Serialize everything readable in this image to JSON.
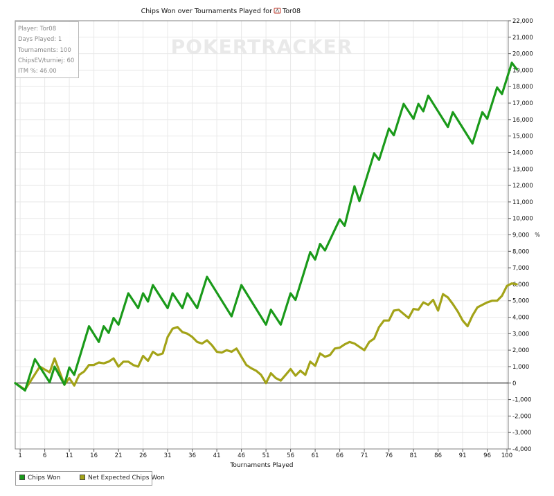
{
  "info": {
    "lines": [
      "Player: Tor08",
      "Days Played: 1",
      "Tournaments: 100",
      "ChipsEV/turniej: 60",
      "ITM %: 46.00"
    ]
  },
  "watermark": "POKERTRACKER",
  "colors": {
    "chips_won": "#1a9a1a",
    "net_expected": "#a3a318",
    "zero_line": "#000000",
    "grid": "#e8e8e8"
  },
  "chart_data": {
    "type": "line",
    "title": "Chips Won over Tournaments Played for",
    "title_player": "Tor08",
    "title_icon": "pokerstars-icon",
    "xlabel": "Tournaments Played",
    "ylabel": "",
    "y2label": "%",
    "xlim": [
      1,
      100
    ],
    "ylim": [
      -4000,
      22000
    ],
    "x_ticks": [
      "1",
      "6",
      "11",
      "16",
      "21",
      "26",
      "31",
      "36",
      "41",
      "46",
      "51",
      "56",
      "61",
      "66",
      "71",
      "76",
      "81",
      "86",
      "91",
      "96",
      "100"
    ],
    "y_ticks": [
      "22,000",
      "21,000",
      "20,000",
      "19,000",
      "18,000",
      "17,000",
      "16,000",
      "15,000",
      "14,000",
      "13,000",
      "12,000",
      "11,000",
      "10,000",
      "9,000",
      "8,000",
      "7,000",
      "6,000",
      "5,000",
      "4,000",
      "3,000",
      "2,000",
      "1,000",
      "0",
      "-1,000",
      "-2,000",
      "-3,000",
      "-4,000"
    ],
    "grid": true,
    "legend_position": "bottom-left",
    "series": [
      {
        "name": "Chips Won",
        "points": [
          [
            0,
            0
          ],
          [
            2,
            -450
          ],
          [
            4,
            1450
          ],
          [
            7,
            50
          ],
          [
            8,
            1000
          ],
          [
            10,
            -100
          ],
          [
            11,
            950
          ],
          [
            12,
            500
          ],
          [
            15,
            3450
          ],
          [
            17,
            2500
          ],
          [
            18,
            3450
          ],
          [
            19,
            3050
          ],
          [
            20,
            3950
          ],
          [
            21,
            3550
          ],
          [
            23,
            5450
          ],
          [
            25,
            4550
          ],
          [
            26,
            5450
          ],
          [
            27,
            4950
          ],
          [
            28,
            5950
          ],
          [
            31,
            4550
          ],
          [
            32,
            5450
          ],
          [
            34,
            4550
          ],
          [
            35,
            5450
          ],
          [
            37,
            4550
          ],
          [
            39,
            6450
          ],
          [
            44,
            4050
          ],
          [
            46,
            5950
          ],
          [
            51,
            3550
          ],
          [
            52,
            4450
          ],
          [
            54,
            3550
          ],
          [
            56,
            5450
          ],
          [
            57,
            5050
          ],
          [
            60,
            7950
          ],
          [
            61,
            7500
          ],
          [
            62,
            8450
          ],
          [
            63,
            8050
          ],
          [
            66,
            9950
          ],
          [
            67,
            9550
          ],
          [
            69,
            11950
          ],
          [
            70,
            11050
          ],
          [
            73,
            13950
          ],
          [
            74,
            13550
          ],
          [
            76,
            15450
          ],
          [
            77,
            15050
          ],
          [
            79,
            16950
          ],
          [
            81,
            16050
          ],
          [
            82,
            16950
          ],
          [
            83,
            16500
          ],
          [
            84,
            17450
          ],
          [
            88,
            15550
          ],
          [
            89,
            16450
          ],
          [
            93,
            14550
          ],
          [
            95,
            16450
          ],
          [
            96,
            16050
          ],
          [
            98,
            17950
          ],
          [
            99,
            17550
          ],
          [
            101,
            19450
          ],
          [
            102,
            19050
          ]
        ]
      },
      {
        "name": "Net Expected Chips Won",
        "points": [
          [
            0,
            0
          ],
          [
            2,
            -400
          ],
          [
            5,
            1000
          ],
          [
            7,
            650
          ],
          [
            8,
            1500
          ],
          [
            10,
            -100
          ],
          [
            11,
            300
          ],
          [
            12,
            -150
          ],
          [
            13,
            500
          ],
          [
            14,
            700
          ],
          [
            15,
            1100
          ],
          [
            16,
            1100
          ],
          [
            17,
            1250
          ],
          [
            18,
            1200
          ],
          [
            19,
            1300
          ],
          [
            20,
            1500
          ],
          [
            21,
            1000
          ],
          [
            22,
            1300
          ],
          [
            23,
            1300
          ],
          [
            24,
            1100
          ],
          [
            25,
            1000
          ],
          [
            26,
            1650
          ],
          [
            27,
            1350
          ],
          [
            28,
            1900
          ],
          [
            29,
            1700
          ],
          [
            30,
            1800
          ],
          [
            31,
            2800
          ],
          [
            32,
            3300
          ],
          [
            33,
            3400
          ],
          [
            34,
            3100
          ],
          [
            35,
            3000
          ],
          [
            36,
            2800
          ],
          [
            37,
            2500
          ],
          [
            38,
            2400
          ],
          [
            39,
            2600
          ],
          [
            40,
            2300
          ],
          [
            41,
            1900
          ],
          [
            42,
            1850
          ],
          [
            43,
            2000
          ],
          [
            44,
            1900
          ],
          [
            45,
            2100
          ],
          [
            46,
            1600
          ],
          [
            47,
            1100
          ],
          [
            48,
            900
          ],
          [
            49,
            750
          ],
          [
            50,
            500
          ],
          [
            51,
            0
          ],
          [
            52,
            600
          ],
          [
            53,
            300
          ],
          [
            54,
            150
          ],
          [
            55,
            500
          ],
          [
            56,
            850
          ],
          [
            57,
            450
          ],
          [
            58,
            750
          ],
          [
            59,
            500
          ],
          [
            60,
            1300
          ],
          [
            61,
            1050
          ],
          [
            62,
            1800
          ],
          [
            63,
            1600
          ],
          [
            64,
            1700
          ],
          [
            65,
            2100
          ],
          [
            66,
            2150
          ],
          [
            67,
            2350
          ],
          [
            68,
            2500
          ],
          [
            69,
            2400
          ],
          [
            70,
            2200
          ],
          [
            71,
            2000
          ],
          [
            72,
            2500
          ],
          [
            73,
            2700
          ],
          [
            74,
            3400
          ],
          [
            75,
            3800
          ],
          [
            76,
            3800
          ],
          [
            77,
            4400
          ],
          [
            78,
            4450
          ],
          [
            79,
            4200
          ],
          [
            80,
            3950
          ],
          [
            81,
            4500
          ],
          [
            82,
            4450
          ],
          [
            83,
            4900
          ],
          [
            84,
            4750
          ],
          [
            85,
            5050
          ],
          [
            86,
            4400
          ],
          [
            87,
            5400
          ],
          [
            88,
            5200
          ],
          [
            89,
            4800
          ],
          [
            90,
            4350
          ],
          [
            91,
            3800
          ],
          [
            92,
            3450
          ],
          [
            93,
            4100
          ],
          [
            94,
            4600
          ],
          [
            95,
            4750
          ],
          [
            96,
            4900
          ],
          [
            97,
            5000
          ],
          [
            98,
            5000
          ],
          [
            99,
            5300
          ],
          [
            100,
            5900
          ],
          [
            101,
            6050
          ],
          [
            102,
            6000
          ]
        ]
      }
    ]
  }
}
